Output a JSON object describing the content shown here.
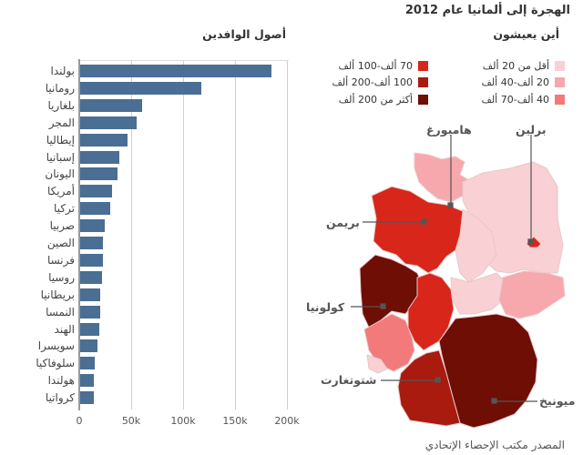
{
  "header": {
    "title": "الهجرة إلى ألمانيا عام 2012",
    "map_title": "أين يعيشون",
    "bar_title": "أصول الوافدين"
  },
  "legend": [
    {
      "label": "أقل من 20 ألف",
      "color": "#f9d0d3"
    },
    {
      "label": "20 ألف-40 ألف",
      "color": "#f7a8ac"
    },
    {
      "label": "40 ألف-70 ألف",
      "color": "#f27a7a"
    },
    {
      "label": "70 ألف-100 ألف",
      "color": "#d8261a"
    },
    {
      "label": "100 ألف-200 ألف",
      "color": "#a91b0f"
    },
    {
      "label": "أكثر من 200 ألف",
      "color": "#6e0e05"
    }
  ],
  "cities": {
    "hamburg": "هامبورغ",
    "berlin": "برلين",
    "bremen": "بريمن",
    "cologne": "كولونيا",
    "stuttgart": "شتوتغارت",
    "munich": "ميونيخ"
  },
  "source": "المصدر مكتب الإحصاء الإتحادي",
  "chart_data": {
    "type": "bar",
    "orientation": "horizontal",
    "title": "أصول الوافدين",
    "xlabel": "",
    "ylabel": "",
    "xlim": [
      0,
      200000
    ],
    "xticks": [
      "0",
      "50k",
      "100k",
      "150k",
      "200k"
    ],
    "grid": true,
    "bar_color": "#4a6e94",
    "categories": [
      "بولندا",
      "رومانيا",
      "بلغاريا",
      "المجر",
      "إيطاليا",
      "إسبانيا",
      "اليونان",
      "أمريكا",
      "تركيا",
      "صربيا",
      "الصين",
      "فرنسا",
      "روسيا",
      "بريطانيا",
      "النمسا",
      "الهند",
      "سويسرا",
      "سلوفاكيا",
      "هولندا",
      "كرواتيا"
    ],
    "values": [
      184000,
      117000,
      60000,
      54000,
      46000,
      38000,
      36000,
      31000,
      29000,
      24000,
      22000,
      22000,
      21000,
      19000,
      19000,
      18000,
      17000,
      14000,
      13000,
      13000
    ]
  }
}
